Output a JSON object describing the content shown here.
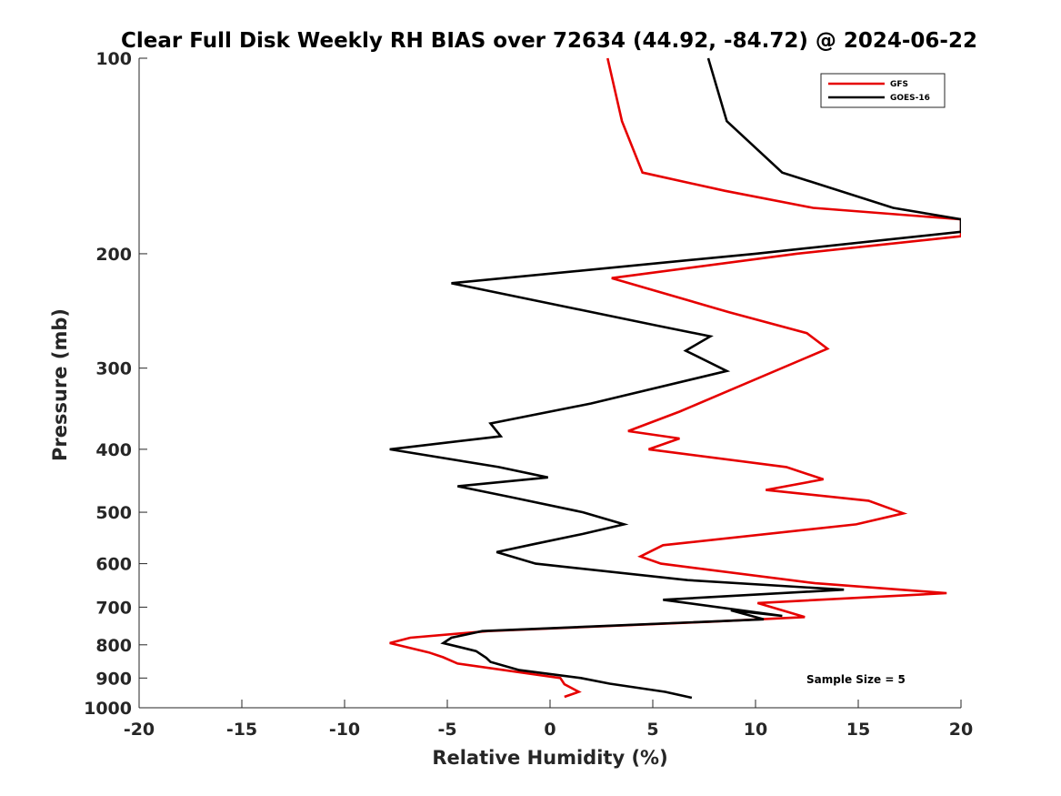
{
  "chart_data": {
    "type": "line",
    "title": "Clear Full Disk Weekly RH BIAS over 72634 (44.92, -84.72) @ 2024-06-22",
    "xlabel": "Relative Humidity (%)",
    "ylabel": "Pressure (mb)",
    "xlim": [
      -20,
      20
    ],
    "ylim": [
      100,
      1000
    ],
    "yscale": "log",
    "reversed_y": true,
    "x_ticks": [
      -20,
      -15,
      -10,
      -5,
      0,
      5,
      10,
      15,
      20
    ],
    "x_tick_labels": [
      "-20",
      "-15",
      "-10",
      "-5",
      "0",
      "5",
      "10",
      "15",
      "20"
    ],
    "y_ticks": [
      100,
      200,
      300,
      400,
      500,
      600,
      700,
      800,
      900,
      1000
    ],
    "y_tick_labels": [
      "100",
      "200",
      "300",
      "400",
      "500",
      "600",
      "700",
      "800",
      "900",
      "1000"
    ],
    "grid": false,
    "legend_position": "top-right",
    "annotation": "Sample Size = 5",
    "series": [
      {
        "name": "GFS",
        "color": "#e60000",
        "points": [
          [
            2.8,
            100
          ],
          [
            3.5,
            125
          ],
          [
            4.5,
            150
          ],
          [
            8.5,
            160
          ],
          [
            12.8,
            170
          ],
          [
            20,
            177
          ],
          [
            20,
            188
          ],
          [
            12,
            200
          ],
          [
            3,
            218
          ],
          [
            8.7,
            246
          ],
          [
            12.5,
            265
          ],
          [
            13.5,
            280
          ],
          [
            9,
            322
          ],
          [
            6.3,
            350
          ],
          [
            3.8,
            375
          ],
          [
            6.3,
            385
          ],
          [
            4.8,
            400
          ],
          [
            11.5,
            426
          ],
          [
            13.3,
            445
          ],
          [
            10.5,
            462
          ],
          [
            15.5,
            480
          ],
          [
            17.2,
            502
          ],
          [
            14.9,
            522
          ],
          [
            5.5,
            562
          ],
          [
            4.4,
            585
          ],
          [
            5.4,
            600
          ],
          [
            12.9,
            643
          ],
          [
            19.3,
            666
          ],
          [
            10.1,
            690
          ],
          [
            12.4,
            725
          ],
          [
            7.8,
            737
          ],
          [
            -3,
            762
          ],
          [
            -6.8,
            780
          ],
          [
            -7.8,
            795
          ],
          [
            -5.9,
            822
          ],
          [
            -5.2,
            836
          ],
          [
            -4.5,
            855
          ],
          [
            0.5,
            900
          ],
          [
            0.7,
            920
          ],
          [
            1.4,
            945
          ],
          [
            0.7,
            962
          ]
        ]
      },
      {
        "name": "GOES-16",
        "color": "#000000",
        "points": [
          [
            7.7,
            100
          ],
          [
            8.6,
            125
          ],
          [
            11.3,
            150
          ],
          [
            16.7,
            170
          ],
          [
            20,
            177
          ],
          [
            20,
            185
          ],
          [
            10,
            200
          ],
          [
            -4.8,
            222
          ],
          [
            5.2,
            258
          ],
          [
            7.8,
            268
          ],
          [
            6.6,
            282
          ],
          [
            8.6,
            303
          ],
          [
            2,
            340
          ],
          [
            -2.9,
            365
          ],
          [
            -2.4,
            382
          ],
          [
            -7.8,
            400
          ],
          [
            -2.5,
            426
          ],
          [
            -0.1,
            442
          ],
          [
            -4.5,
            456
          ],
          [
            -1.9,
            474
          ],
          [
            1.6,
            500
          ],
          [
            3.6,
            522
          ],
          [
            1.6,
            540
          ],
          [
            -0.8,
            560
          ],
          [
            -2.6,
            576
          ],
          [
            -0.7,
            600
          ],
          [
            6.7,
            636
          ],
          [
            14.3,
            658
          ],
          [
            5.5,
            682
          ],
          [
            11.3,
            722
          ],
          [
            8.8,
            708
          ],
          [
            10.4,
            731
          ],
          [
            -3.3,
            762
          ],
          [
            -4.8,
            780
          ],
          [
            -5.2,
            795
          ],
          [
            -3.6,
            818
          ],
          [
            -3.1,
            838
          ],
          [
            -2.9,
            850
          ],
          [
            -1.5,
            875
          ],
          [
            1.5,
            900
          ],
          [
            2.9,
            918
          ],
          [
            5.6,
            945
          ],
          [
            6.9,
            965
          ]
        ]
      }
    ]
  }
}
